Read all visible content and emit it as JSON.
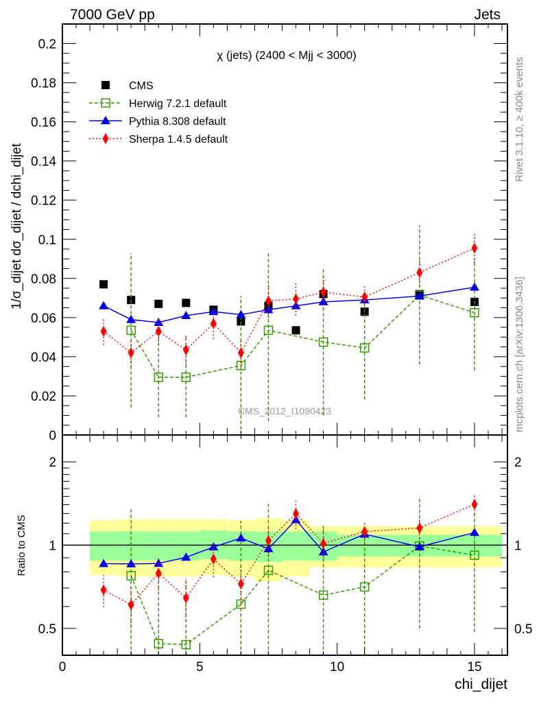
{
  "header": {
    "left": "7000 GeV pp",
    "right": "Jets"
  },
  "side_labels": {
    "rivet": "Rivet 3.1.10, ≥ 400k events",
    "mcplots": "mcplots.cern.ch [arXiv:1306.3436]"
  },
  "watermark": "CMS_2012_I1090423",
  "chart_data": [
    {
      "type": "scatter",
      "title": "χ (jets) (2400 < Mjj < 3000)",
      "ylabel": "1/σ_dijet dσ_dijet / dchi_dijet",
      "xlim": [
        0,
        16.2
      ],
      "ylim": [
        0,
        0.21
      ],
      "yticks": [
        "0",
        "0.02",
        "0.04",
        "0.06",
        "0.08",
        "0.1",
        "0.12",
        "0.14",
        "0.16",
        "0.18",
        "0.2"
      ],
      "x": [
        1.5,
        2.5,
        3.5,
        4.5,
        5.5,
        6.5,
        7.5,
        8.5,
        9.5,
        11,
        13,
        15
      ],
      "series": [
        {
          "name": "CMS",
          "color": "#000000",
          "marker": "square",
          "values": [
            0.077,
            0.069,
            0.067,
            0.0675,
            0.064,
            0.058,
            0.066,
            0.0535,
            0.072,
            0.063,
            0.072,
            0.068
          ]
        },
        {
          "name": "Herwig 7.2.1 default",
          "color": "#339900",
          "marker": "open-square",
          "line": "dashed",
          "values": [
            null,
            0.0535,
            0.0295,
            0.0295,
            null,
            0.0355,
            0.0535,
            null,
            0.0475,
            0.0445,
            0.0715,
            0.0625
          ],
          "errors": [
            null,
            [
              0.014,
              0.093
            ],
            [
              0.009,
              0.05
            ],
            [
              0.009,
              0.051
            ],
            null,
            [
              0,
              0.071
            ],
            [
              0.007,
              0.093
            ],
            null,
            [
              0.01,
              0.085
            ],
            [
              0.018,
              0.071
            ],
            [
              0.036,
              0.107
            ],
            [
              0.033,
              0.09
            ]
          ]
        },
        {
          "name": "Pythia 8.308 default",
          "color": "#0000ee",
          "marker": "triangle",
          "line": "solid",
          "values": [
            0.066,
            0.059,
            0.0575,
            0.061,
            0.063,
            0.0615,
            0.064,
            0.066,
            0.068,
            0.069,
            0.071,
            0.0755
          ]
        },
        {
          "name": "Sherpa 1.4.5 default",
          "color": "#ff0000",
          "marker": "diamond",
          "line": "dotted",
          "values": [
            0.053,
            0.042,
            0.053,
            0.0435,
            0.057,
            0.042,
            0.0685,
            0.0695,
            0.073,
            0.0705,
            0.083,
            0.0955
          ],
          "errors": [
            [
              0.046,
              0.06
            ],
            [
              0.035,
              0.049
            ],
            [
              0.046,
              0.06
            ],
            [
              0.036,
              0.051
            ],
            [
              0.049,
              0.065
            ],
            [
              0.035,
              0.049
            ],
            [
              0.06,
              0.077
            ],
            [
              0.061,
              0.078
            ],
            [
              0.0645,
              0.082
            ],
            [
              0.063,
              0.077
            ],
            [
              0.076,
              0.0897
            ],
            [
              0.088,
              0.1027
            ]
          ]
        }
      ]
    },
    {
      "type": "scatter",
      "ylabel": "Ratio to CMS",
      "xlabel": "chi_dijet",
      "xlim": [
        0,
        16.2
      ],
      "ylim": [
        0.4,
        2.5
      ],
      "yscale": "log",
      "yticks": [
        "0.5",
        "1",
        "2"
      ],
      "xticks": [
        "0",
        "5",
        "10",
        "15"
      ],
      "band_edges": [
        1,
        2,
        3,
        4,
        5,
        6,
        7,
        8,
        9,
        10,
        12,
        14,
        16
      ],
      "stat_band": [
        [
          0.88,
          1.12
        ],
        [
          0.88,
          1.12
        ],
        [
          0.88,
          1.12
        ],
        [
          0.88,
          1.12
        ],
        [
          0.89,
          1.13
        ],
        [
          0.88,
          1.12
        ],
        [
          0.87,
          1.12
        ],
        [
          0.88,
          1.12
        ],
        [
          0.88,
          1.12
        ],
        [
          0.91,
          1.09
        ],
        [
          0.91,
          1.09
        ],
        [
          0.91,
          1.09
        ]
      ],
      "total_band": [
        [
          0.78,
          1.23
        ],
        [
          0.77,
          1.24
        ],
        [
          0.77,
          1.24
        ],
        [
          0.77,
          1.24
        ],
        [
          0.78,
          1.24
        ],
        [
          0.77,
          1.23
        ],
        [
          0.74,
          1.25
        ],
        [
          0.77,
          1.23
        ],
        [
          0.83,
          1.17
        ],
        [
          0.83,
          1.17
        ],
        [
          0.83,
          1.17
        ],
        [
          0.83,
          1.17
        ]
      ]
    }
  ]
}
